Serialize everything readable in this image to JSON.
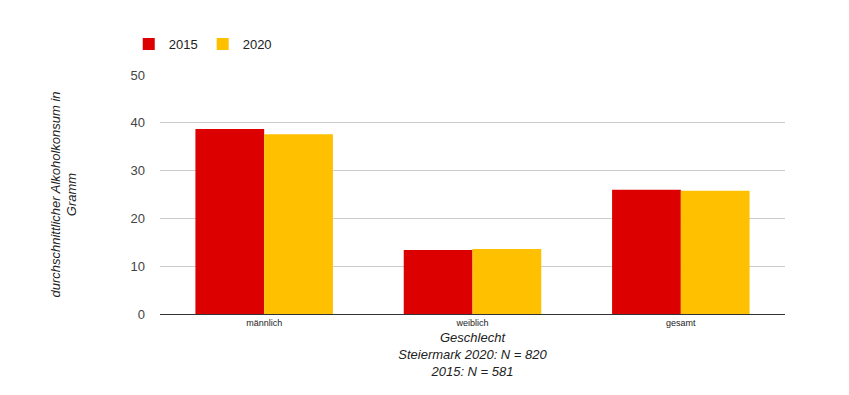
{
  "chart_data": {
    "type": "bar",
    "categories": [
      "männlich",
      "weiblich",
      "gesamt"
    ],
    "series": [
      {
        "name": "2015",
        "color": "#dc0000",
        "values": [
          38.7,
          13.4,
          26.0
        ]
      },
      {
        "name": "2020",
        "color": "#ffc000",
        "values": [
          37.6,
          13.6,
          25.8
        ]
      }
    ],
    "x_label": "Geschlecht",
    "annotations": [
      "Steiermark 2020: N = 820",
      "2015: N = 581"
    ],
    "y_label": "durchschnittlicher Alkoholkonsum in Gramm",
    "ylim": [
      0,
      50
    ],
    "yticks": [
      0,
      10,
      20,
      30,
      40,
      50
    ],
    "grid": true,
    "legend": "top-left"
  }
}
